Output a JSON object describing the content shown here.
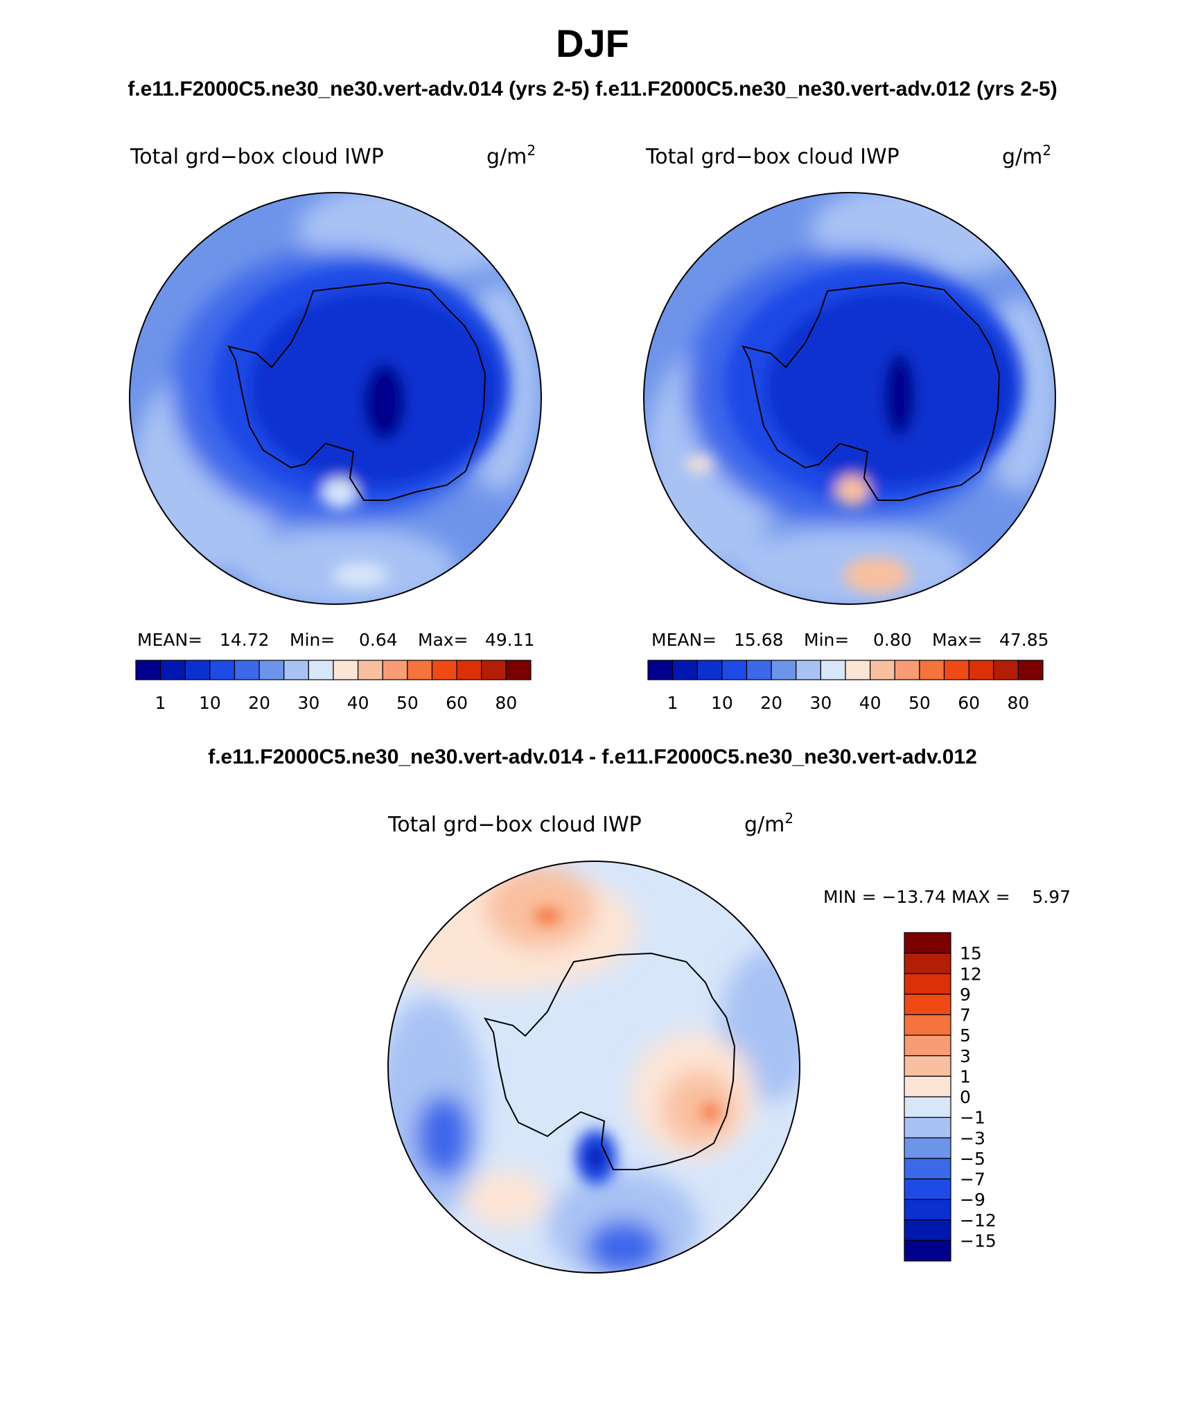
{
  "title": "DJF",
  "case_header": "f.e11.F2000C5.ne30_ne30.vert-adv.014 (yrs 2-5) f.e11.F2000C5.ne30_ne30.vert-adv.012 (yrs 2-5)",
  "diff_header": "f.e11.F2000C5.ne30_ne30.vert-adv.014 - f.e11.F2000C5.ne30_ne30.vert-adv.012",
  "panels": [
    {
      "variable": "Total grd−box cloud IWP",
      "units": "g/m",
      "units_exp": "2",
      "stats": {
        "mean_label": "MEAN=",
        "mean": "14.72",
        "min_label": "Min=",
        "min": "0.64",
        "max_label": "Max=",
        "max": "49.11"
      }
    },
    {
      "variable": "Total grd−box cloud IWP",
      "units": "g/m",
      "units_exp": "2",
      "stats": {
        "mean_label": "MEAN=",
        "mean": "15.68",
        "min_label": "Min=",
        "min": "0.80",
        "max_label": "Max=",
        "max": "47.85"
      }
    }
  ],
  "diff_panel": {
    "variable": "Total grd−box cloud IWP",
    "units": "g/m",
    "units_exp": "2",
    "min_max_text": "MIN = −13.74 MAX =    5.97"
  },
  "colorbar_field": {
    "colors": [
      "#00008c",
      "#0018b0",
      "#0a30d0",
      "#1e4ae6",
      "#3c68ea",
      "#6e94ea",
      "#a8c2f4",
      "#d8e6fa",
      "#fde5d5",
      "#f9c0a0",
      "#f79c74",
      "#f5733c",
      "#f04a14",
      "#dc3008",
      "#b41e06",
      "#7c0000"
    ],
    "labels": [
      "1",
      "10",
      "20",
      "30",
      "40",
      "50",
      "60",
      "80"
    ]
  },
  "colorbar_diff": {
    "colors": [
      "#7c0000",
      "#b41e06",
      "#dc3008",
      "#f04a14",
      "#f5733c",
      "#f79c74",
      "#f9c0a0",
      "#fde5d5",
      "#d8e6fa",
      "#a8c2f4",
      "#6e94ea",
      "#3c68ea",
      "#1e4ae6",
      "#0a30d0",
      "#0018b0",
      "#00008c"
    ],
    "labels": [
      "15",
      "12",
      "9",
      "7",
      "5",
      "3",
      "1",
      "0",
      "−1",
      "−3",
      "−5",
      "−7",
      "−9",
      "−12",
      "−15"
    ]
  },
  "map_colors": {
    "ocean_light": "#a8c2f4",
    "ocean_mid": "#6e94ea",
    "ocean_dark": "#3c68ea",
    "ice_edge": "#1e4ae6",
    "ice_interior": "#0a30d0",
    "ice_core": "#00008c",
    "pale": "#d8e6fa",
    "warm_light": "#fde5d5",
    "warm_mid": "#f9c0a0",
    "warm_strong": "#f5733c"
  }
}
